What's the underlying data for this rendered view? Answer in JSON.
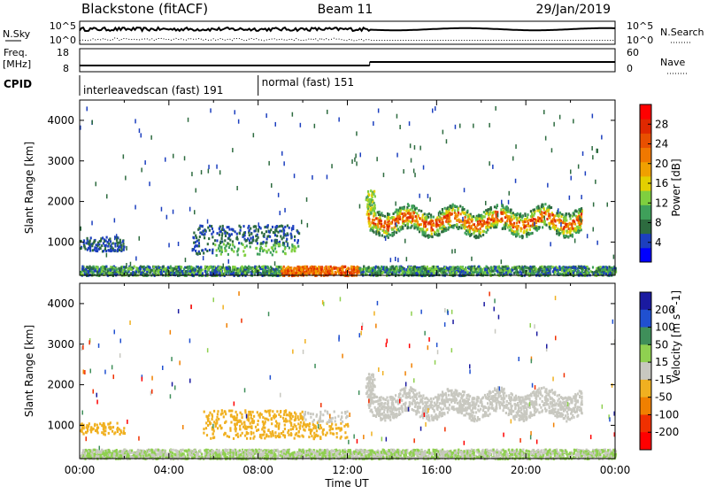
{
  "header": {
    "station": "Blackstone (fitACF)",
    "beam": "Beam 11",
    "date": "29/Jan/2019"
  },
  "panels": {
    "nsky_label": "N.Sky",
    "nsky_ticks": [
      "10^5",
      "10^0"
    ],
    "nsearch_label": "N.Search",
    "nsearch_ticks": [
      "10^5",
      "10^0"
    ],
    "freq_label": "Freq.",
    "freq_unit": "[MHz]",
    "freq_ticks": [
      "18",
      "8"
    ],
    "nave_label": "Nave",
    "nave_ticks": [
      "60",
      "0"
    ],
    "cpid_label": "CPID",
    "cpid_segments": [
      {
        "label": "interleavedscan (fast) 191",
        "start_hour": 0,
        "end_hour": 8
      },
      {
        "label": "normal (fast) 151",
        "start_hour": 8,
        "end_hour": 24
      }
    ]
  },
  "chart_data": [
    {
      "type": "heatmap",
      "quantity": "Power",
      "ylabel": "Slant Range [km]",
      "ylim": [
        180,
        4500
      ],
      "yticks": [
        1000,
        2000,
        3000,
        4000
      ],
      "xlim_hours": [
        0,
        24
      ],
      "colorbar": {
        "label": "Power [dB]",
        "ticks": [
          "4",
          "8",
          "12",
          "16",
          "20",
          "24",
          "28"
        ],
        "range": [
          0,
          32
        ],
        "colors": [
          "#0000ff",
          "#1c3fbf",
          "#2d6b3f",
          "#3fa05a",
          "#7fcf3f",
          "#e3d000",
          "#f0a000",
          "#f07800",
          "#e85000",
          "#e02800",
          "#ff0000"
        ]
      },
      "features": [
        {
          "name": "near-range ground scatter",
          "start_hour": 0.0,
          "end_hour": 24.0,
          "range_km": [
            200,
            420
          ],
          "value_db": 8
        },
        {
          "name": "afternoon F-region band",
          "start_hour": 12.9,
          "end_hour": 22.5,
          "range_km": [
            1250,
            2000
          ],
          "value_db": 20
        },
        {
          "name": "morning E/F scatter",
          "start_hour": 0.0,
          "end_hour": 9.8,
          "range_km": [
            700,
            1450
          ],
          "value_db": 8
        },
        {
          "name": "midday strong scatter",
          "start_hour": 9.0,
          "end_hour": 12.5,
          "range_km": [
            250,
            400
          ],
          "value_db": 24
        }
      ]
    },
    {
      "type": "heatmap",
      "quantity": "Velocity",
      "ylabel": "Slant Range [km]",
      "ylim": [
        180,
        4500
      ],
      "yticks": [
        1000,
        2000,
        3000,
        4000
      ],
      "xlabel": "Time UT",
      "xticks": [
        "00:00",
        "04:00",
        "08:00",
        "12:00",
        "16:00",
        "20:00",
        "00:00"
      ],
      "xlim_hours": [
        0,
        24
      ],
      "colorbar": {
        "label": "Velocity [m s^-1]",
        "ticks": [
          "200",
          "100",
          "50",
          "15",
          "-15",
          "-50",
          "-100",
          "-200"
        ],
        "colors": [
          "#1a1aa0",
          "#2050d0",
          "#3f8f5a",
          "#8fd050",
          "#c8c8c0",
          "#f0b020",
          "#f08000",
          "#f03000",
          "#ff0000"
        ]
      },
      "features": [
        {
          "name": "ground scatter",
          "start_hour": 0.0,
          "end_hour": 24.0,
          "range_km": [
            200,
            420
          ],
          "value_ms": 5
        },
        {
          "name": "afternoon F-region band",
          "start_hour": 12.9,
          "end_hour": 22.5,
          "range_km": [
            1250,
            2000
          ],
          "value_ms": 0
        },
        {
          "name": "morning flow",
          "start_hour": 5.5,
          "end_hour": 12.0,
          "range_km": [
            700,
            1400
          ],
          "value_ms": -40
        }
      ]
    }
  ]
}
